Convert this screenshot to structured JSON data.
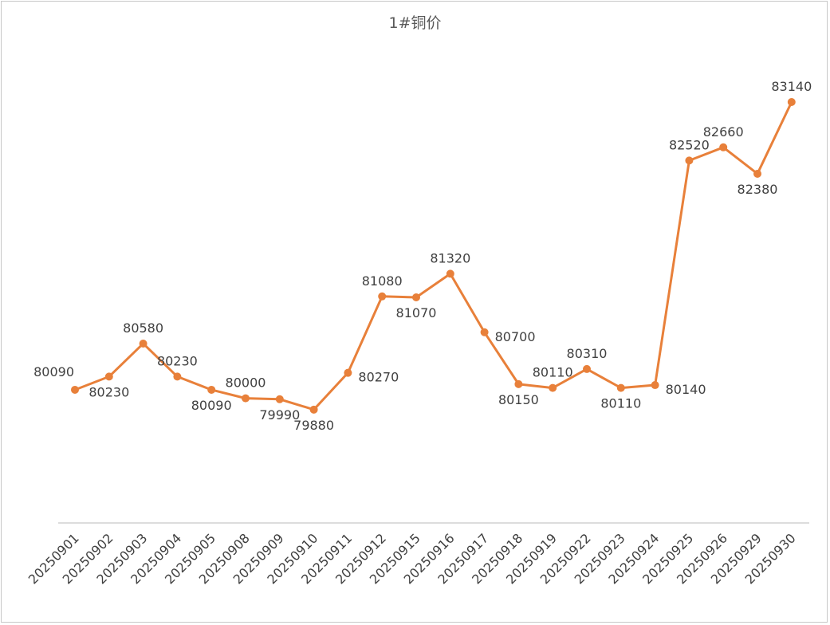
{
  "chart_data": {
    "type": "line",
    "title": "1#铜价",
    "xlabel": "",
    "ylabel": "",
    "categories": [
      "20250901",
      "20250902",
      "20250903",
      "20250904",
      "20250905",
      "20250908",
      "20250909",
      "20250910",
      "20250911",
      "20250912",
      "20250915",
      "20250916",
      "20250917",
      "20250918",
      "20250919",
      "20250922",
      "20250923",
      "20250924",
      "20250925",
      "20250926",
      "20250929",
      "20250930"
    ],
    "series": [
      {
        "name": "1#铜价",
        "values": [
          80090,
          80230,
          80580,
          80230,
          80090,
          80000,
          79990,
          79880,
          80270,
          81080,
          81070,
          81320,
          80700,
          80150,
          80110,
          80310,
          80110,
          80140,
          82520,
          82660,
          82380,
          83140
        ]
      }
    ],
    "label_positions": [
      "left",
      "below",
      "above",
      "above",
      "below",
      "above",
      "below",
      "below",
      "right",
      "above",
      "below",
      "above",
      "right",
      "below",
      "above",
      "above",
      "below",
      "right",
      "above",
      "above",
      "below",
      "above"
    ],
    "ylim": [
      77800,
      83630
    ],
    "grid": false,
    "legend": "none",
    "colors": {
      "line": "#E8803A",
      "drop_line": "#A9C8DE",
      "axis": "#D0D0D0"
    }
  }
}
